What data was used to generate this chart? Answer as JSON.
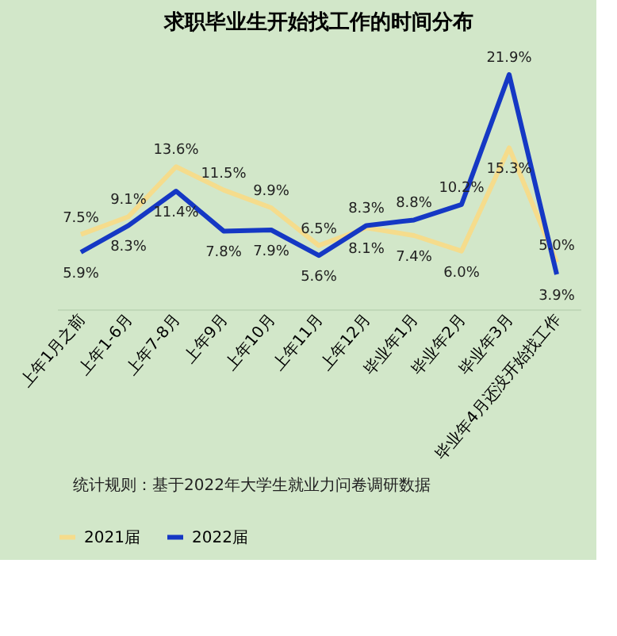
{
  "chart_data": {
    "type": "line",
    "title": "求职毕业生开始找工作的时间分布",
    "categories": [
      "上年1月之前",
      "上年1-6月",
      "上年7-8月",
      "上年9月",
      "上年10月",
      "上年11月",
      "上年12月",
      "毕业年1月",
      "毕业年2月",
      "毕业年3月",
      "毕业年4月还没开始找工作"
    ],
    "series": [
      {
        "name": "2021届",
        "color": "#f5dc8c",
        "values": [
          7.5,
          9.1,
          13.6,
          11.5,
          9.9,
          6.5,
          8.1,
          7.4,
          6.0,
          15.3,
          5.0
        ],
        "value_labels": [
          "7.5%",
          "9.1%",
          "13.6%",
          "11.5%",
          "9.9%",
          "6.5%",
          "8.1%",
          "7.4%",
          "6.0%",
          "15.3%",
          "5.0%"
        ]
      },
      {
        "name": "2022届",
        "color": "#1538c4",
        "values": [
          5.9,
          8.3,
          11.4,
          7.8,
          7.9,
          5.6,
          8.3,
          8.8,
          10.2,
          21.9,
          3.9
        ],
        "value_labels": [
          "5.9%",
          "8.3%",
          "11.4%",
          "7.8%",
          "7.9%",
          "5.6%",
          "8.3%",
          "8.8%",
          "10.2%",
          "21.9%",
          "3.9%"
        ]
      }
    ],
    "tick_labels": "x",
    "grid": false,
    "legend": "bottom",
    "marker": "none",
    "line_style": "solid",
    "annotations": [
      "统计规则：基于2022年大学生就业力问卷调研数据"
    ]
  }
}
